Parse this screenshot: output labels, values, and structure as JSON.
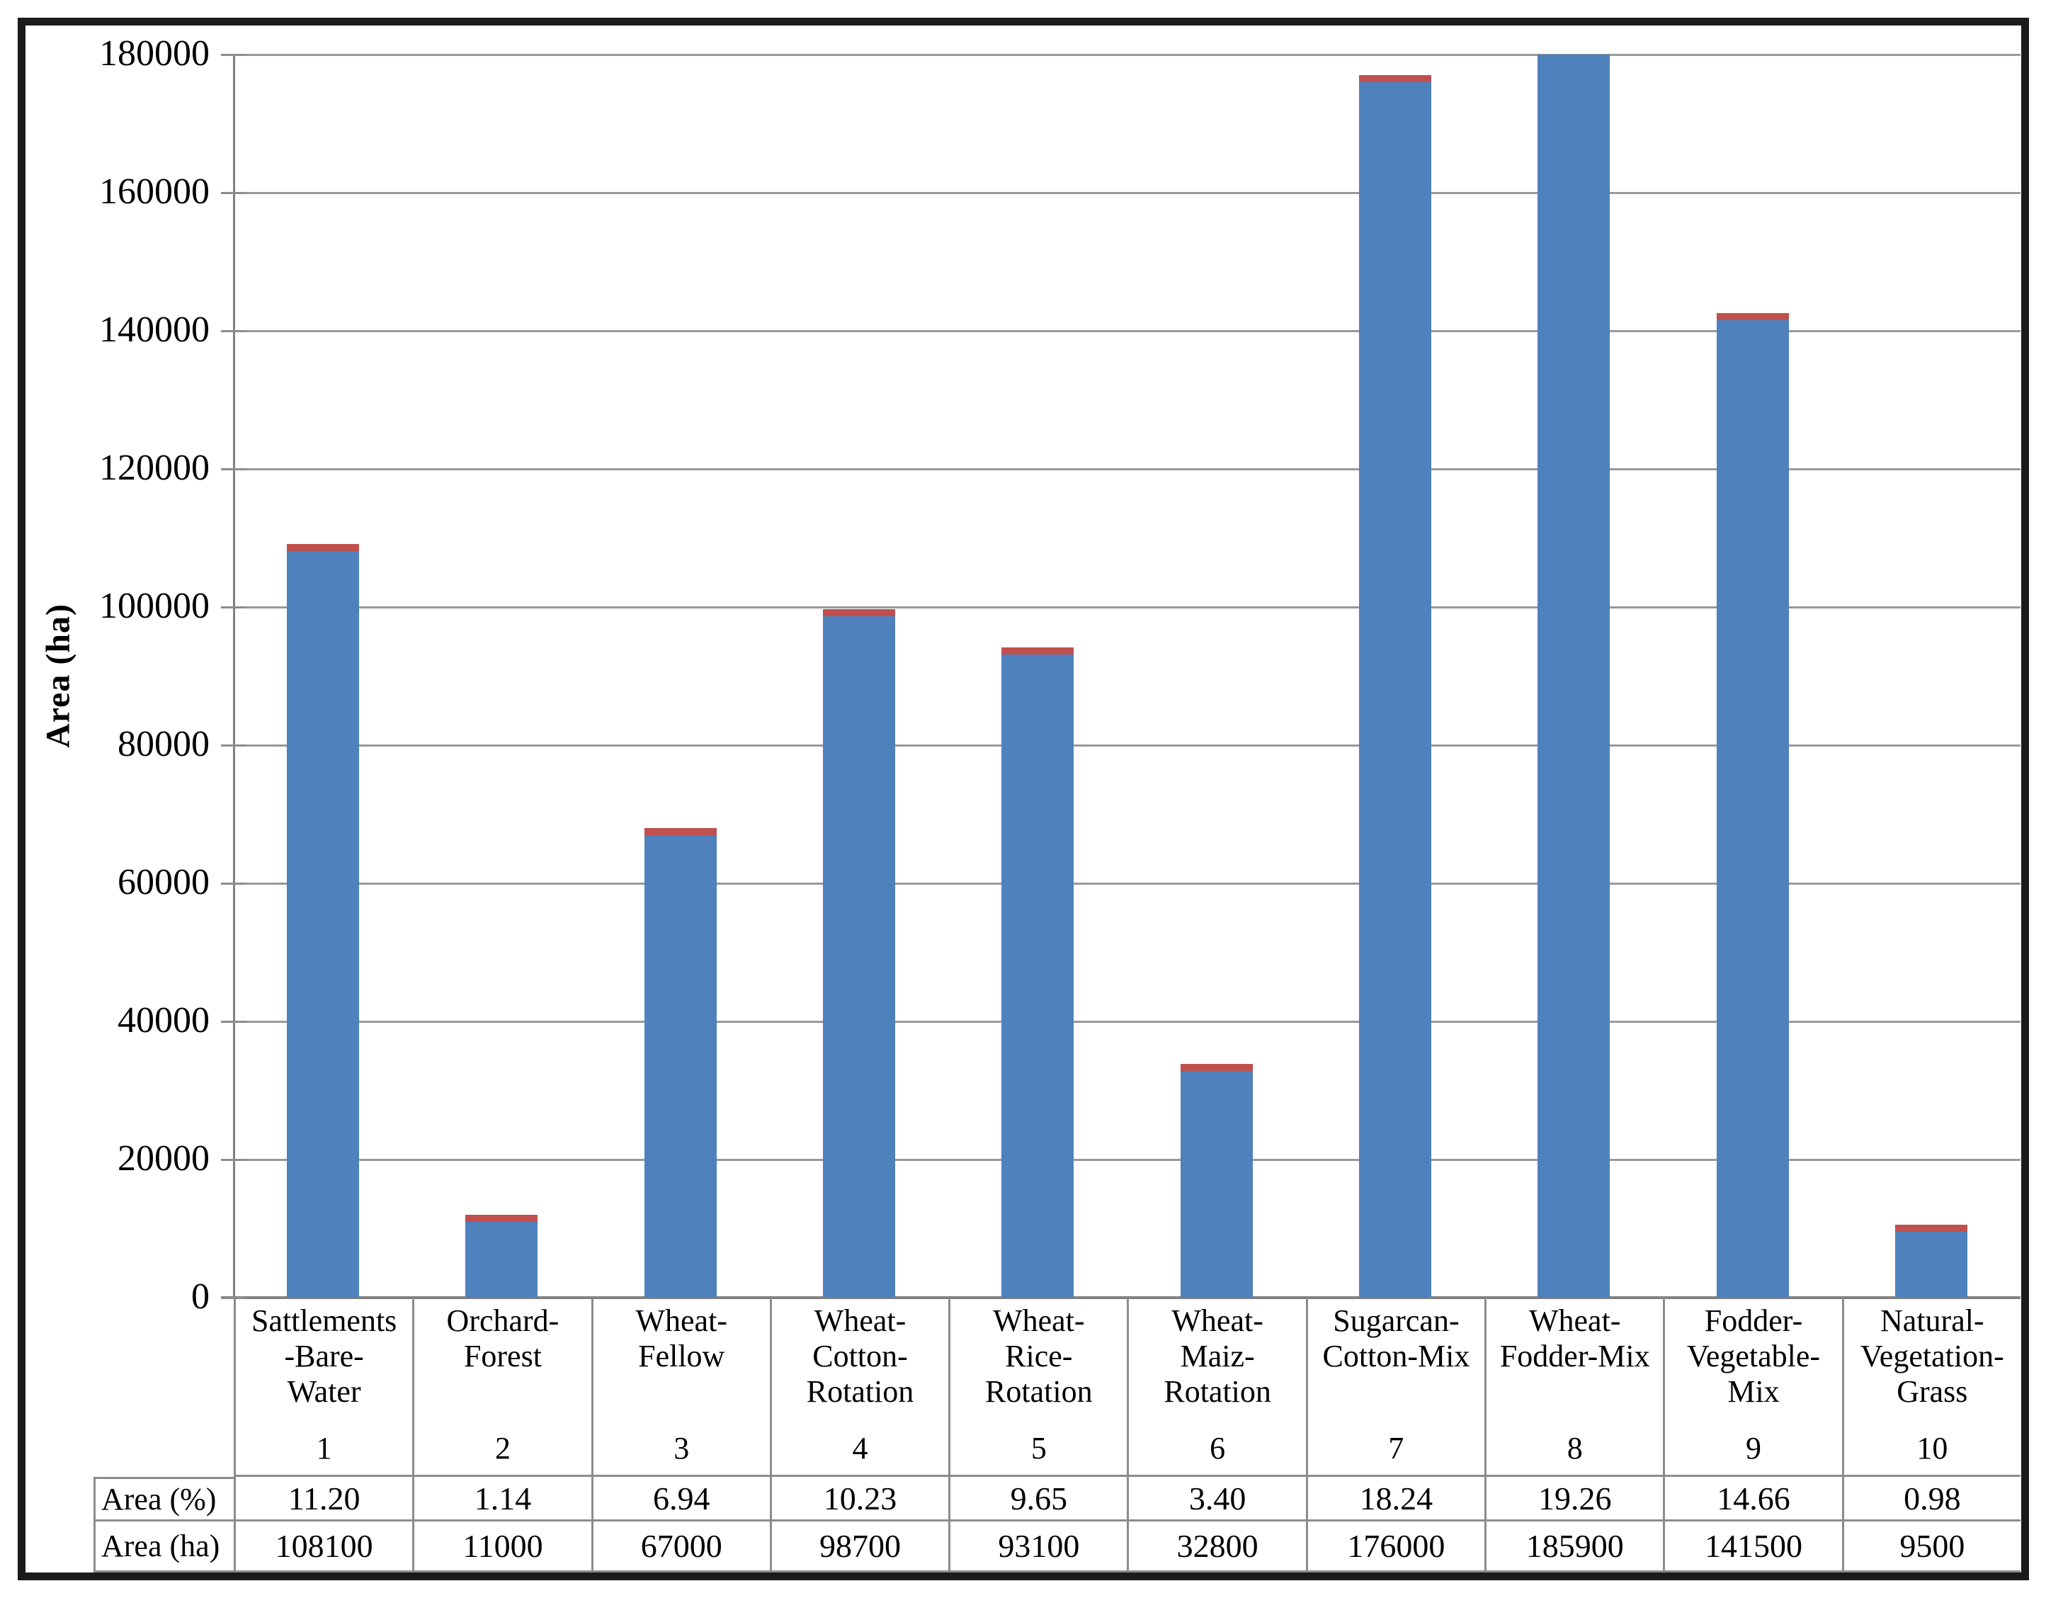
{
  "chart_data": {
    "type": "bar",
    "title": "",
    "xlabel": "",
    "ylabel": "Area (ha)",
    "ylim": [
      0,
      180000
    ],
    "ytick_step": 20000,
    "yticks": [
      "0",
      "20000",
      "40000",
      "60000",
      "80000",
      "100000",
      "120000",
      "140000",
      "160000",
      "180000"
    ],
    "grid": true,
    "legend": "none",
    "colors": {
      "bar": "#4f81bd",
      "bar_cap": "#c0504d",
      "gridline": "#999999",
      "axis": "#808080",
      "table_border": "#8c8c8c",
      "frame": "#1b1b1b",
      "text": "#000000"
    },
    "series": [
      {
        "name": "Area (ha)",
        "values": [
          108100,
          11000,
          67000,
          98700,
          93100,
          32800,
          176000,
          185900,
          141500,
          9500
        ]
      }
    ],
    "categories": [
      {
        "label_lines": [
          "Sattlements",
          "-Bare-",
          "Water"
        ],
        "number": "1",
        "area_pct": "11.20",
        "area_ha": "108100",
        "value": 108100
      },
      {
        "label_lines": [
          "Orchard-",
          "Forest"
        ],
        "number": "2",
        "area_pct": "1.14",
        "area_ha": "11000",
        "value": 11000
      },
      {
        "label_lines": [
          "Wheat-",
          "Fellow"
        ],
        "number": "3",
        "area_pct": "6.94",
        "area_ha": "67000",
        "value": 67000
      },
      {
        "label_lines": [
          "Wheat-",
          "Cotton-",
          "Rotation"
        ],
        "number": "4",
        "area_pct": "10.23",
        "area_ha": "98700",
        "value": 98700
      },
      {
        "label_lines": [
          "Wheat-",
          "Rice-",
          "Rotation"
        ],
        "number": "5",
        "area_pct": "9.65",
        "area_ha": "93100",
        "value": 93100
      },
      {
        "label_lines": [
          "Wheat-",
          "Maiz-",
          "Rotation"
        ],
        "number": "6",
        "area_pct": "3.40",
        "area_ha": "32800",
        "value": 32800
      },
      {
        "label_lines": [
          "Sugarcan-",
          "Cotton-Mix"
        ],
        "number": "7",
        "area_pct": "18.24",
        "area_ha": "176000",
        "value": 176000
      },
      {
        "label_lines": [
          "Wheat-",
          "Fodder-Mix"
        ],
        "number": "8",
        "area_pct": "19.26",
        "area_ha": "185900",
        "value": 185900
      },
      {
        "label_lines": [
          "Fodder-",
          "Vegetable-",
          "Mix"
        ],
        "number": "9",
        "area_pct": "14.66",
        "area_ha": "141500",
        "value": 141500
      },
      {
        "label_lines": [
          "Natural-",
          "Vegetation-",
          "Grass"
        ],
        "number": "10",
        "area_pct": "0.98",
        "area_ha": "9500",
        "value": 9500
      }
    ],
    "table_rows": [
      {
        "header": "Area (%)",
        "key": "area_pct"
      },
      {
        "header": "Area (ha)",
        "key": "area_ha"
      }
    ]
  }
}
